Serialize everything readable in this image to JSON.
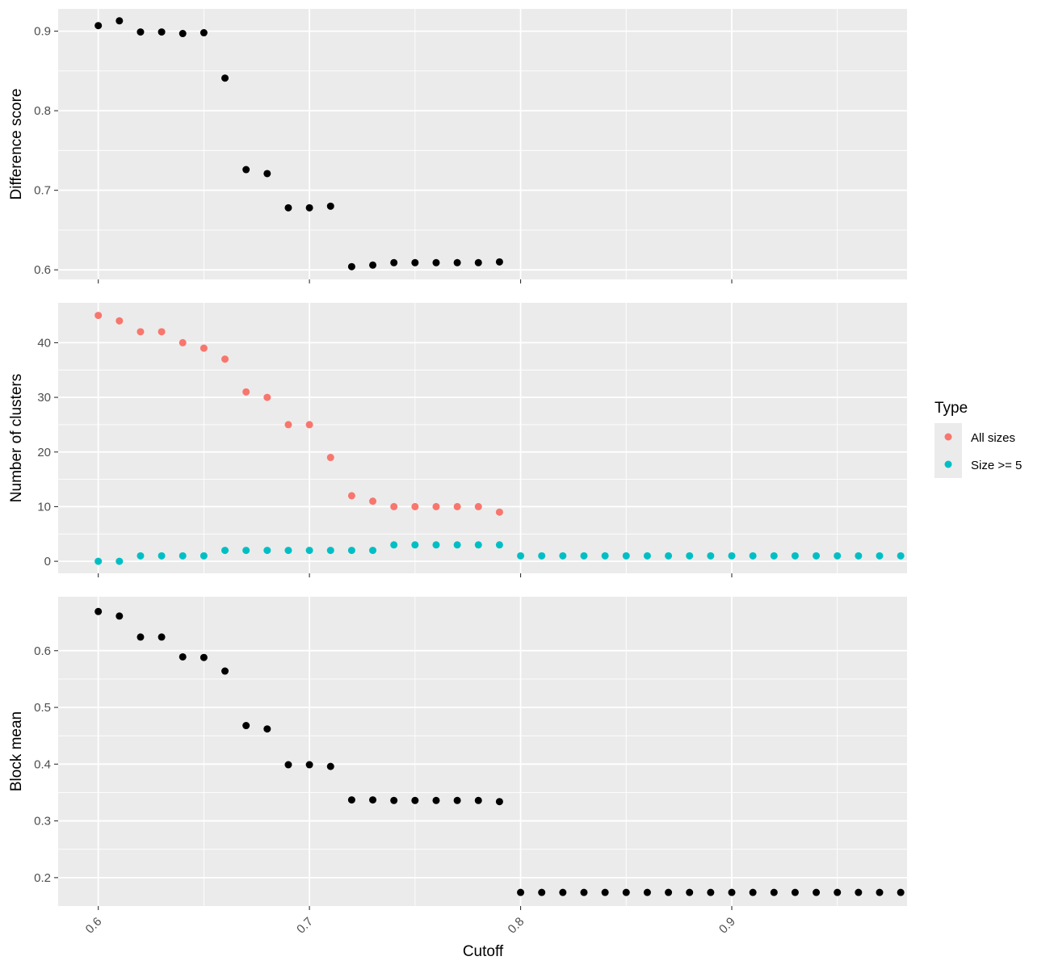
{
  "chart_data": {
    "type": "scatter",
    "xlabel": "Cutoff",
    "x_ticks": [
      "0.6",
      "0.7",
      "0.8",
      "0.9"
    ],
    "x_tick_values": [
      0.6,
      0.7,
      0.8,
      0.9
    ],
    "xlim": [
      0.581,
      0.983
    ],
    "grid": true,
    "legend": {
      "title": "Type",
      "position": "right",
      "entries": [
        {
          "label": "All sizes",
          "color": "#F8766D"
        },
        {
          "label": "Size >= 5",
          "color": "#00BFC4"
        }
      ]
    },
    "panels": [
      {
        "ylabel": "Difference score",
        "y_ticks": [
          "0.6",
          "0.7",
          "0.8",
          "0.9"
        ],
        "y_tick_values": [
          0.6,
          0.7,
          0.8,
          0.9
        ],
        "ylim": [
          0.588,
          0.928
        ],
        "series": [
          {
            "color": "#000000",
            "points": [
              [
                0.6,
                0.907
              ],
              [
                0.61,
                0.913
              ],
              [
                0.62,
                0.899
              ],
              [
                0.63,
                0.899
              ],
              [
                0.64,
                0.897
              ],
              [
                0.65,
                0.898
              ],
              [
                0.66,
                0.841
              ],
              [
                0.67,
                0.726
              ],
              [
                0.68,
                0.721
              ],
              [
                0.69,
                0.678
              ],
              [
                0.7,
                0.678
              ],
              [
                0.71,
                0.68
              ],
              [
                0.72,
                0.604
              ],
              [
                0.73,
                0.606
              ],
              [
                0.74,
                0.609
              ],
              [
                0.75,
                0.609
              ],
              [
                0.76,
                0.609
              ],
              [
                0.77,
                0.609
              ],
              [
                0.78,
                0.609
              ],
              [
                0.79,
                0.61
              ]
            ]
          }
        ]
      },
      {
        "ylabel": "Number of clusters",
        "y_ticks": [
          "0",
          "10",
          "20",
          "30",
          "40"
        ],
        "y_tick_values": [
          0,
          10,
          20,
          30,
          40
        ],
        "ylim": [
          -2.2,
          47.3
        ],
        "series": [
          {
            "name": "All sizes",
            "color": "#F8766D",
            "points": [
              [
                0.6,
                45
              ],
              [
                0.61,
                44
              ],
              [
                0.62,
                42
              ],
              [
                0.63,
                42
              ],
              [
                0.64,
                40
              ],
              [
                0.65,
                39
              ],
              [
                0.66,
                37
              ],
              [
                0.67,
                31
              ],
              [
                0.68,
                30
              ],
              [
                0.69,
                25
              ],
              [
                0.7,
                25
              ],
              [
                0.71,
                19
              ],
              [
                0.72,
                12
              ],
              [
                0.73,
                11
              ],
              [
                0.74,
                10
              ],
              [
                0.75,
                10
              ],
              [
                0.76,
                10
              ],
              [
                0.77,
                10
              ],
              [
                0.78,
                10
              ],
              [
                0.79,
                9
              ]
            ]
          },
          {
            "name": "Size >= 5",
            "color": "#00BFC4",
            "points": [
              [
                0.6,
                0
              ],
              [
                0.61,
                0
              ],
              [
                0.62,
                1
              ],
              [
                0.63,
                1
              ],
              [
                0.64,
                1
              ],
              [
                0.65,
                1
              ],
              [
                0.66,
                2
              ],
              [
                0.67,
                2
              ],
              [
                0.68,
                2
              ],
              [
                0.69,
                2
              ],
              [
                0.7,
                2
              ],
              [
                0.71,
                2
              ],
              [
                0.72,
                2
              ],
              [
                0.73,
                2
              ],
              [
                0.74,
                3
              ],
              [
                0.75,
                3
              ],
              [
                0.76,
                3
              ],
              [
                0.77,
                3
              ],
              [
                0.78,
                3
              ],
              [
                0.79,
                3
              ],
              [
                0.8,
                1
              ],
              [
                0.81,
                1
              ],
              [
                0.82,
                1
              ],
              [
                0.83,
                1
              ],
              [
                0.84,
                1
              ],
              [
                0.85,
                1
              ],
              [
                0.86,
                1
              ],
              [
                0.87,
                1
              ],
              [
                0.88,
                1
              ],
              [
                0.89,
                1
              ],
              [
                0.9,
                1
              ],
              [
                0.91,
                1
              ],
              [
                0.92,
                1
              ],
              [
                0.93,
                1
              ],
              [
                0.94,
                1
              ],
              [
                0.95,
                1
              ],
              [
                0.96,
                1
              ],
              [
                0.97,
                1
              ],
              [
                0.98,
                1
              ]
            ]
          }
        ]
      },
      {
        "ylabel": "Block mean",
        "y_ticks": [
          "0.2",
          "0.3",
          "0.4",
          "0.5",
          "0.6"
        ],
        "y_tick_values": [
          0.2,
          0.3,
          0.4,
          0.5,
          0.6
        ],
        "ylim": [
          0.15,
          0.695
        ],
        "series": [
          {
            "color": "#000000",
            "points": [
              [
                0.6,
                0.669
              ],
              [
                0.61,
                0.661
              ],
              [
                0.62,
                0.624
              ],
              [
                0.63,
                0.624
              ],
              [
                0.64,
                0.589
              ],
              [
                0.65,
                0.588
              ],
              [
                0.66,
                0.564
              ],
              [
                0.67,
                0.468
              ],
              [
                0.68,
                0.462
              ],
              [
                0.69,
                0.399
              ],
              [
                0.7,
                0.399
              ],
              [
                0.71,
                0.396
              ],
              [
                0.72,
                0.337
              ],
              [
                0.73,
                0.337
              ],
              [
                0.74,
                0.336
              ],
              [
                0.75,
                0.336
              ],
              [
                0.76,
                0.336
              ],
              [
                0.77,
                0.336
              ],
              [
                0.78,
                0.336
              ],
              [
                0.79,
                0.334
              ],
              [
                0.8,
                0.174
              ],
              [
                0.81,
                0.174
              ],
              [
                0.82,
                0.174
              ],
              [
                0.83,
                0.174
              ],
              [
                0.84,
                0.174
              ],
              [
                0.85,
                0.174
              ],
              [
                0.86,
                0.174
              ],
              [
                0.87,
                0.174
              ],
              [
                0.88,
                0.174
              ],
              [
                0.89,
                0.174
              ],
              [
                0.9,
                0.174
              ],
              [
                0.91,
                0.174
              ],
              [
                0.92,
                0.174
              ],
              [
                0.93,
                0.174
              ],
              [
                0.94,
                0.174
              ],
              [
                0.95,
                0.174
              ],
              [
                0.96,
                0.174
              ],
              [
                0.97,
                0.174
              ],
              [
                0.98,
                0.174
              ]
            ]
          }
        ]
      }
    ]
  }
}
